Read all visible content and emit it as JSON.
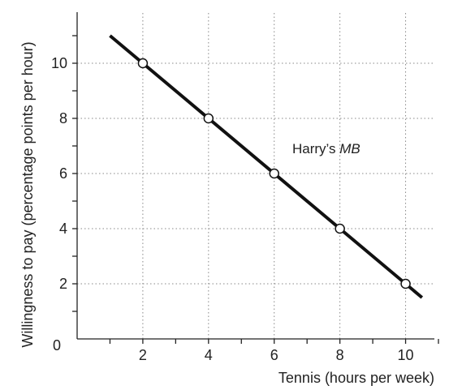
{
  "chart_data": {
    "type": "line",
    "ylabel": "Willingness to pay (percentage points per hour)",
    "xlabel": "Tennis (hours per week)",
    "xlim": [
      0,
      11
    ],
    "ylim": [
      0,
      12
    ],
    "x_ticks": [
      "2",
      "4",
      "6",
      "8",
      "10"
    ],
    "y_ticks": [
      "2",
      "4",
      "6",
      "8",
      "10"
    ],
    "origin_label": "0",
    "grid": "dotted",
    "line": {
      "x_start": 1,
      "y_start": 11,
      "x_end": 10.5,
      "y_end": 1.5
    },
    "points": [
      {
        "x": 2,
        "y": 10
      },
      {
        "x": 4,
        "y": 8
      },
      {
        "x": 6,
        "y": 6
      },
      {
        "x": 8,
        "y": 4
      },
      {
        "x": 10,
        "y": 2
      }
    ],
    "annotation": {
      "text": "Harry’s ",
      "italic": "MB"
    },
    "colors": {
      "line": "#111111",
      "grid": "#888888",
      "axis": "#222222",
      "marker_fill": "#ffffff"
    }
  }
}
